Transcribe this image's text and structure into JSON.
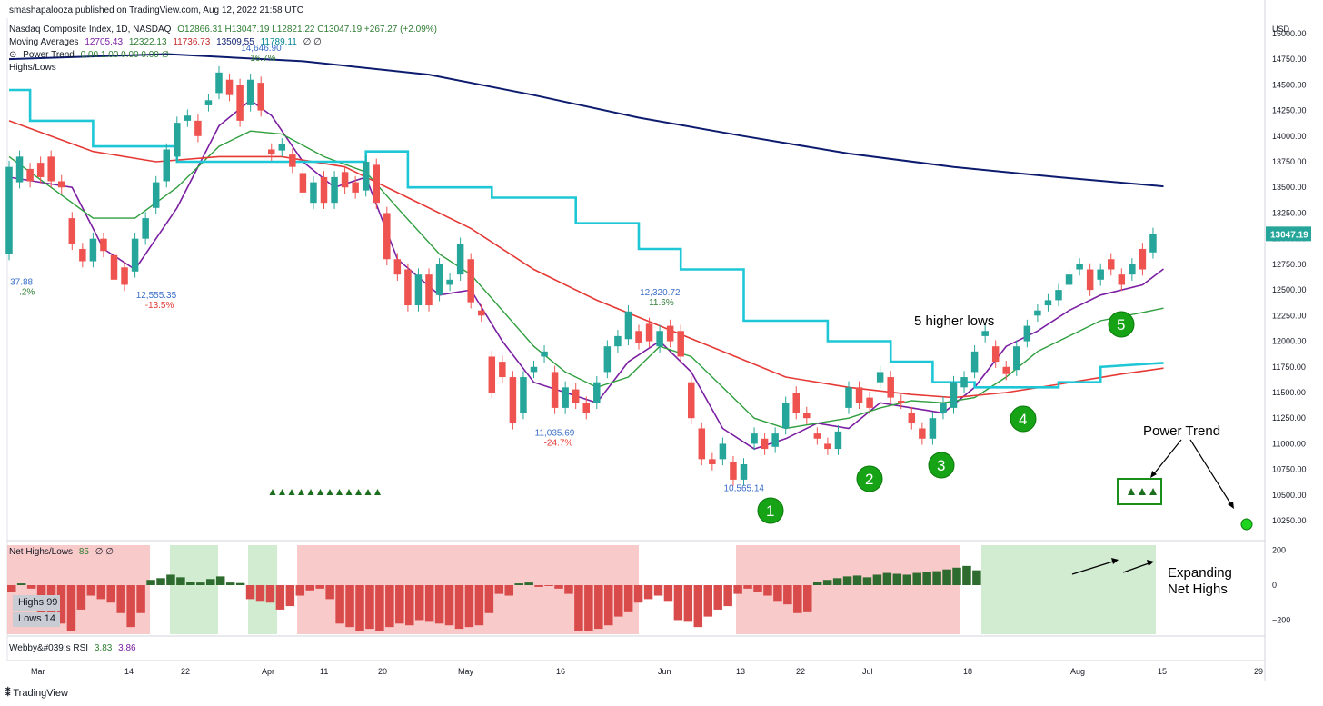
{
  "publisher": "smashapalooza published on TradingView.com, Aug 12, 2022 21:58 UTC",
  "legend": {
    "symbol": "Nasdaq Composite Index, 1D, NASDAQ",
    "ohlc": "O12866.31  H13047.19  L12821.22  C13047.19  +267.27 (+2.09%)",
    "ma_label": "Moving Averages",
    "ma_values": [
      "12705.43",
      "12322.13",
      "11736.73",
      "13509.55",
      "11789.11"
    ],
    "ma_flags": "∅ ∅",
    "power_trend": "Power Trend",
    "power_trend_values": "0.00 1.00 0.00 0.00 ∅",
    "highs_lows": "Highs/Lows",
    "net_label": "Net Highs/Lows",
    "net_value": "85",
    "net_flags": "∅ ∅",
    "highs_label": "Highs",
    "highs_value": "99",
    "lows_label": "Lows",
    "lows_value": "14",
    "rsi_label": "Webby&#039;s RSI",
    "rsi_v1": "3.83",
    "rsi_v2": "3.86"
  },
  "currency": "USD",
  "last_price": "13047.19",
  "footer": "TradingView",
  "annotations": {
    "higher_lows": "5 higher lows",
    "power_trend": "Power Trend",
    "expanding": "Expanding\nNet Highs",
    "markers": [
      "1",
      "2",
      "3",
      "4",
      "5"
    ]
  },
  "colors": {
    "up": "#26a69a",
    "down": "#ef5350",
    "ma5": "#7b1fa2",
    "ma10": "#2e9e3e",
    "ma21": "#e53935",
    "ma50": "#0d1b6e",
    "stair": "#1ec7d6",
    "pink": "#f7b8b8",
    "lightgreen": "#c2e6c2",
    "marker": "#16a316"
  },
  "chart_data": [
    {
      "type": "candlestick",
      "title": "Nasdaq Composite Index, 1D, NASDAQ",
      "ylim": [
        10100,
        15150
      ],
      "y_ticks": [
        10250,
        10500,
        10750,
        11000,
        11250,
        11500,
        11750,
        12000,
        12250,
        12500,
        12750,
        13000,
        13250,
        13500,
        13750,
        14000,
        14250,
        14500,
        14750,
        15000
      ],
      "x_ticks": [
        "Mar",
        "14",
        "22",
        "Apr",
        "11",
        "20",
        "May",
        "16",
        "Jun",
        "13",
        "22",
        "Jul",
        "18",
        "Aug",
        "15",
        "29"
      ],
      "candles": [
        [
          12850,
          13700
        ],
        [
          13550,
          13800
        ],
        [
          13680,
          13560
        ],
        [
          13740,
          13600
        ],
        [
          13800,
          13560
        ],
        [
          13560,
          13500
        ],
        [
          13200,
          12950
        ],
        [
          12900,
          12780
        ],
        [
          12780,
          13000
        ],
        [
          13000,
          12880
        ],
        [
          12840,
          12600
        ],
        [
          12720,
          12550
        ],
        [
          12680,
          13000
        ],
        [
          13000,
          13200
        ],
        [
          13300,
          13550
        ],
        [
          13560,
          13870
        ],
        [
          13800,
          14130
        ],
        [
          14150,
          14200
        ],
        [
          14150,
          14000
        ],
        [
          14300,
          14350
        ],
        [
          14420,
          14620
        ],
        [
          14550,
          14400
        ],
        [
          14500,
          14150
        ],
        [
          14300,
          14550
        ],
        [
          14520,
          14250
        ],
        [
          13870,
          13820
        ],
        [
          13860,
          13920
        ],
        [
          13820,
          13700
        ],
        [
          13640,
          13450
        ],
        [
          13350,
          13550
        ],
        [
          13600,
          13350
        ],
        [
          13350,
          13600
        ],
        [
          13650,
          13500
        ],
        [
          13550,
          13450
        ],
        [
          13470,
          13750
        ],
        [
          13720,
          13350
        ],
        [
          13250,
          12800
        ],
        [
          12800,
          12650
        ],
        [
          12700,
          12350
        ],
        [
          12350,
          12650
        ],
        [
          12650,
          12350
        ],
        [
          12450,
          12750
        ],
        [
          12550,
          12600
        ],
        [
          12650,
          12950
        ],
        [
          12800,
          12380
        ],
        [
          12300,
          12250
        ],
        [
          11850,
          11500
        ],
        [
          11800,
          11650
        ],
        [
          11650,
          11200
        ],
        [
          11300,
          11650
        ],
        [
          11700,
          11750
        ],
        [
          11850,
          11900
        ],
        [
          11700,
          11350
        ],
        [
          11350,
          11550
        ],
        [
          11530,
          11400
        ],
        [
          11400,
          11300
        ],
        [
          11400,
          11600
        ],
        [
          11700,
          11950
        ],
        [
          11950,
          12050
        ],
        [
          12020,
          12290
        ],
        [
          12100,
          11980
        ],
        [
          12170,
          12000
        ],
        [
          11950,
          12100
        ],
        [
          12150,
          12000
        ],
        [
          12100,
          11850
        ],
        [
          11600,
          11250
        ],
        [
          11150,
          10850
        ],
        [
          10850,
          10800
        ],
        [
          10850,
          11000
        ],
        [
          10820,
          10650
        ],
        [
          10650,
          10800
        ],
        [
          11000,
          11100
        ],
        [
          11050,
          10950
        ],
        [
          10970,
          11100
        ],
        [
          11150,
          11400
        ],
        [
          11500,
          11300
        ],
        [
          11300,
          11250
        ],
        [
          11100,
          11050
        ],
        [
          11000,
          10950
        ],
        [
          10950,
          11120
        ],
        [
          11350,
          11550
        ],
        [
          11550,
          11400
        ],
        [
          11450,
          11350
        ],
        [
          11600,
          11700
        ],
        [
          11650,
          11450
        ],
        [
          11420,
          11400
        ],
        [
          11300,
          11200
        ],
        [
          11150,
          11050
        ],
        [
          11050,
          11250
        ],
        [
          11300,
          11400
        ],
        [
          11350,
          11600
        ],
        [
          11550,
          11650
        ],
        [
          11700,
          11900
        ],
        [
          12050,
          12100
        ],
        [
          11950,
          11800
        ],
        [
          11750,
          11680
        ],
        [
          11720,
          11950
        ],
        [
          12000,
          12150
        ],
        [
          12250,
          12300
        ],
        [
          12350,
          12400
        ],
        [
          12400,
          12500
        ],
        [
          12550,
          12650
        ],
        [
          12700,
          12750
        ],
        [
          12700,
          12500
        ],
        [
          12600,
          12700
        ],
        [
          12800,
          12700
        ],
        [
          12650,
          12550
        ],
        [
          12650,
          12750
        ],
        [
          12900,
          12700
        ],
        [
          12866,
          13047
        ]
      ],
      "series": [
        {
          "name": "MA 5",
          "values": [
            [
              0,
              13600
            ],
            [
              6,
              13500
            ],
            [
              9,
              12900
            ],
            [
              12,
              12700
            ],
            [
              16,
              13300
            ],
            [
              20,
              14100
            ],
            [
              23,
              14350
            ],
            [
              25,
              14200
            ],
            [
              28,
              13750
            ],
            [
              31,
              13500
            ],
            [
              34,
              13600
            ],
            [
              37,
              12800
            ],
            [
              41,
              12450
            ],
            [
              44,
              12500
            ],
            [
              47,
              12000
            ],
            [
              50,
              11600
            ],
            [
              53,
              11500
            ],
            [
              56,
              11400
            ],
            [
              59,
              11800
            ],
            [
              62,
              12000
            ],
            [
              65,
              11700
            ],
            [
              68,
              11150
            ],
            [
              71,
              10950
            ],
            [
              74,
              11050
            ],
            [
              77,
              11200
            ],
            [
              80,
              11150
            ],
            [
              83,
              11400
            ],
            [
              86,
              11350
            ],
            [
              89,
              11300
            ],
            [
              92,
              11550
            ],
            [
              95,
              11950
            ],
            [
              98,
              12100
            ],
            [
              101,
              12300
            ],
            [
              104,
              12450
            ],
            [
              108,
              12550
            ],
            [
              110,
              12705
            ]
          ]
        },
        {
          "name": "MA 10",
          "values": [
            [
              0,
              13800
            ],
            [
              8,
              13200
            ],
            [
              12,
              13200
            ],
            [
              16,
              13500
            ],
            [
              20,
              13900
            ],
            [
              23,
              14050
            ],
            [
              26,
              14020
            ],
            [
              30,
              13800
            ],
            [
              34,
              13650
            ],
            [
              37,
              13300
            ],
            [
              41,
              12850
            ],
            [
              44,
              12650
            ],
            [
              47,
              12300
            ],
            [
              50,
              11950
            ],
            [
              53,
              11700
            ],
            [
              56,
              11550
            ],
            [
              59,
              11650
            ],
            [
              62,
              11950
            ],
            [
              65,
              11850
            ],
            [
              68,
              11550
            ],
            [
              71,
              11250
            ],
            [
              74,
              11150
            ],
            [
              77,
              11200
            ],
            [
              80,
              11250
            ],
            [
              83,
              11350
            ],
            [
              86,
              11420
            ],
            [
              89,
              11400
            ],
            [
              92,
              11450
            ],
            [
              95,
              11650
            ],
            [
              98,
              11900
            ],
            [
              101,
              12050
            ],
            [
              104,
              12200
            ],
            [
              108,
              12280
            ],
            [
              110,
              12322
            ]
          ]
        },
        {
          "name": "MA 21",
          "values": [
            [
              0,
              14150
            ],
            [
              8,
              13850
            ],
            [
              14,
              13750
            ],
            [
              20,
              13800
            ],
            [
              26,
              13800
            ],
            [
              32,
              13700
            ],
            [
              38,
              13400
            ],
            [
              44,
              13100
            ],
            [
              50,
              12700
            ],
            [
              56,
              12400
            ],
            [
              62,
              12150
            ],
            [
              68,
              11900
            ],
            [
              74,
              11650
            ],
            [
              80,
              11550
            ],
            [
              86,
              11480
            ],
            [
              90,
              11450
            ],
            [
              95,
              11500
            ],
            [
              100,
              11580
            ],
            [
              106,
              11680
            ],
            [
              110,
              11737
            ]
          ]
        },
        {
          "name": "MA 50",
          "values": [
            [
              0,
              14750
            ],
            [
              15,
              14800
            ],
            [
              28,
              14730
            ],
            [
              40,
              14600
            ],
            [
              50,
              14400
            ],
            [
              60,
              14180
            ],
            [
              70,
              14000
            ],
            [
              80,
              13830
            ],
            [
              90,
              13700
            ],
            [
              100,
              13600
            ],
            [
              110,
              13510
            ]
          ]
        },
        {
          "name": "MA 200",
          "values": [
            [
              0,
              14450
            ],
            [
              2,
              14450
            ],
            [
              2,
              14150
            ],
            [
              8,
              14150
            ],
            [
              8,
              13900
            ],
            [
              16,
              13900
            ],
            [
              16,
              13750
            ],
            [
              34,
              13750
            ],
            [
              34,
              13850
            ],
            [
              38,
              13850
            ],
            [
              38,
              13500
            ],
            [
              46,
              13500
            ],
            [
              46,
              13400
            ],
            [
              54,
              13400
            ],
            [
              54,
              13150
            ],
            [
              60,
              13150
            ],
            [
              60,
              12900
            ],
            [
              64,
              12900
            ],
            [
              64,
              12700
            ],
            [
              70,
              12700
            ],
            [
              70,
              12200
            ],
            [
              78,
              12200
            ],
            [
              78,
              12000
            ],
            [
              84,
              12000
            ],
            [
              84,
              11800
            ],
            [
              88,
              11800
            ],
            [
              88,
              11600
            ],
            [
              92,
              11600
            ],
            [
              92,
              11550
            ],
            [
              100,
              11550
            ],
            [
              100,
              11600
            ],
            [
              104,
              11600
            ],
            [
              104,
              11750
            ],
            [
              110,
              11789
            ]
          ]
        }
      ],
      "labels": [
        {
          "x": 2,
          "y": 12550,
          "text": "37.88",
          "pct": ".2%"
        },
        {
          "x": 14,
          "y": 12420,
          "text": "12,555.35",
          "pct": "-13.5%"
        },
        {
          "x": 24,
          "y": 14830,
          "text": "14,646.90",
          "pct": "16.7%"
        },
        {
          "x": 52,
          "y": 11080,
          "text": "11,035.69",
          "pct": "-24.7%"
        },
        {
          "x": 62,
          "y": 12450,
          "text": "12,320.72",
          "pct": "11.6%"
        },
        {
          "x": 70,
          "y": 10540,
          "text": "10,565.14",
          "pct": ""
        }
      ]
    },
    {
      "type": "bar",
      "title": "Net Highs/Lows",
      "ylim": [
        -260,
        260
      ],
      "y_ticks": [
        200,
        0,
        -200
      ],
      "values": [
        -40,
        10,
        -20,
        -180,
        -200,
        -220,
        -260,
        -140,
        -60,
        -80,
        -100,
        -160,
        -240,
        -160,
        30,
        40,
        60,
        45,
        20,
        15,
        35,
        50,
        15,
        12,
        -80,
        -90,
        -100,
        -140,
        -120,
        -60,
        -30,
        -20,
        -80,
        -220,
        -240,
        -260,
        -250,
        -260,
        -240,
        -220,
        -230,
        -200,
        -210,
        -220,
        -230,
        -250,
        -240,
        -230,
        -160,
        -50,
        -60,
        10,
        15,
        -10,
        -5,
        -20,
        -50,
        -260,
        -260,
        -250,
        -230,
        -180,
        -150,
        -100,
        -80,
        -60,
        -90,
        -200,
        -210,
        -240,
        -180,
        -140,
        -120,
        -50,
        -20,
        -40,
        -60,
        -90,
        -110,
        -160,
        -150,
        20,
        30,
        40,
        50,
        55,
        45,
        60,
        70,
        65,
        60,
        70,
        75,
        80,
        90,
        100,
        110,
        85
      ]
    }
  ]
}
